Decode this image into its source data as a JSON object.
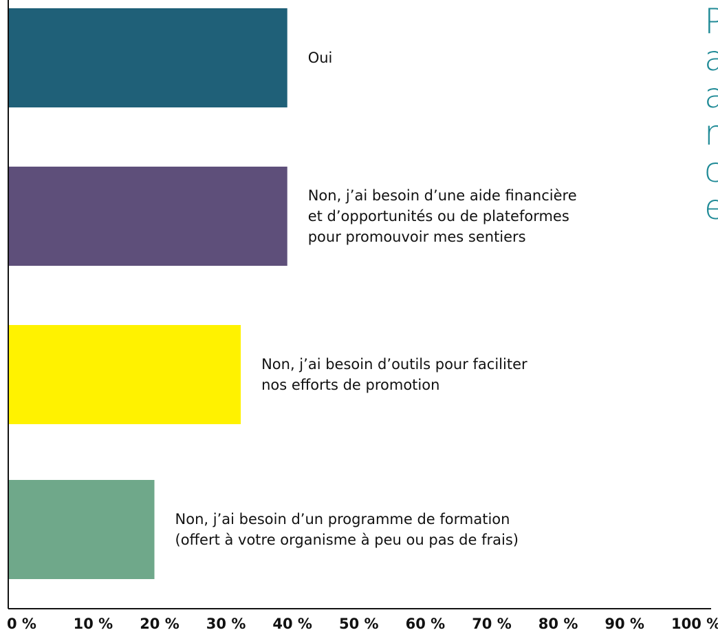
{
  "chart_data": {
    "type": "barh",
    "categories": [
      "Oui",
      "Non, j’ai besoin d’une aide financière\net d’opportunités ou de plateformes\npour promouvoir mes sentiers",
      "Non, j’ai besoin d’outils pour faciliter\nnos efforts de promotion",
      "Non, j’ai besoin d’un programme de formation\n(offert à votre organisme à peu ou pas de frais)"
    ],
    "values": [
      42,
      42,
      35,
      22
    ],
    "colors": [
      "#1f6078",
      "#5e4f7a",
      "#fff200",
      "#6fa88a"
    ],
    "xlim": [
      0,
      100
    ],
    "xticks": [
      {
        "value": 0,
        "label": "0 %"
      },
      {
        "value": 10,
        "label": "10 %"
      },
      {
        "value": 20,
        "label": "20 %"
      },
      {
        "value": 30,
        "label": "30 %"
      },
      {
        "value": 40,
        "label": "40 %"
      },
      {
        "value": 50,
        "label": "50 %"
      },
      {
        "value": 60,
        "label": "60 %"
      },
      {
        "value": 70,
        "label": "70 %"
      },
      {
        "value": 80,
        "label": "80 %"
      },
      {
        "value": 90,
        "label": "90 %"
      },
      {
        "value": 100,
        "label": "100 %"
      }
    ],
    "side_text": [
      "P",
      "a",
      "a",
      "r",
      "c",
      "e"
    ],
    "side_text_color": "#1f8a96"
  }
}
